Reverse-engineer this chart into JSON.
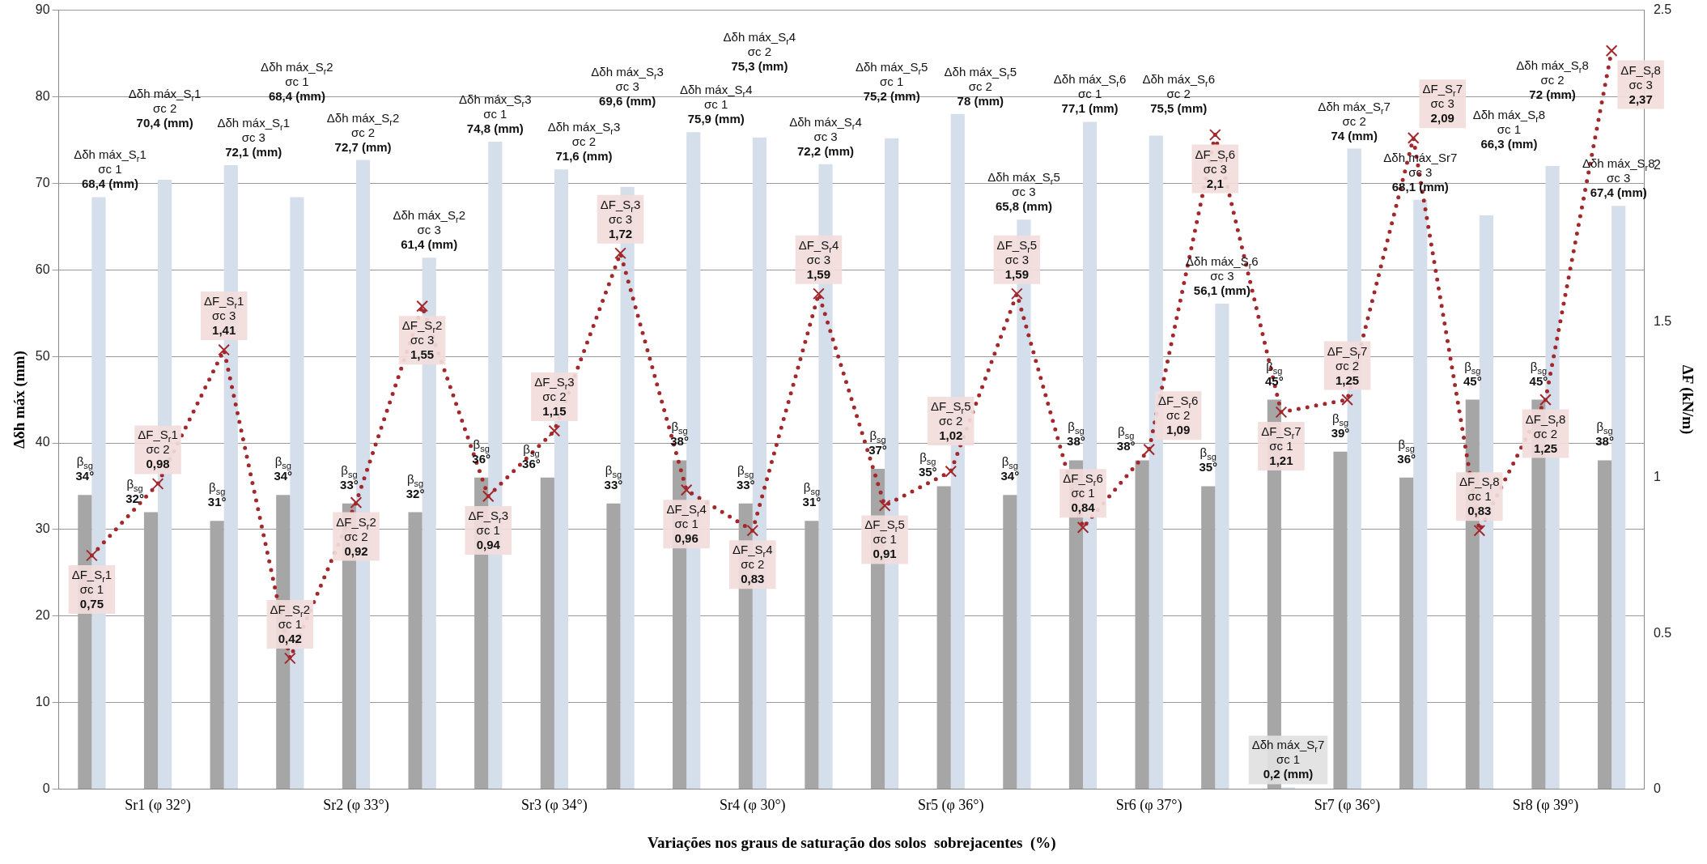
{
  "chart_data": {
    "type": "bar",
    "xlabel": "Variações nos graus de saturação dos solos  sobrejacentes  (%)",
    "ylabel": "Δδh máx (mm)",
    "y2label": "ΔF (kN/m)",
    "categories": [
      null,
      "Sr1 (φ 32°)",
      null,
      null,
      "Sr2 (φ 33°)",
      null,
      null,
      "Sr3 (φ 34°)",
      null,
      null,
      "Sr4 (φ 30°)",
      null,
      null,
      "Sr5 (φ 36°)",
      null,
      null,
      "Sr6 (φ 37°)",
      null,
      null,
      "Sr7 (φ 36°)",
      null,
      null,
      "Sr8 (φ 39°)",
      null
    ],
    "ylim": [
      0,
      90
    ],
    "yticks": [
      0,
      10,
      20,
      30,
      40,
      50,
      60,
      70,
      80,
      90
    ],
    "y2lim": [
      0,
      2.5
    ],
    "y2ticks": [
      0,
      0.5,
      1,
      1.5,
      2,
      2.5
    ],
    "grid": "y",
    "legend": false,
    "series": [
      {
        "color": "#a6a6a6",
        "values": [
          34,
          32,
          31,
          34,
          33,
          32,
          36,
          36,
          33,
          38,
          33,
          31,
          37,
          35,
          34,
          38,
          38,
          35,
          45,
          39,
          36,
          45,
          45,
          38
        ],
        "value_labels": [
          "β$_{sg}$\n34°",
          "β$_{sg}$\n32°",
          "β$_{sg}$\n31°",
          "β$_{sg}$\n34°",
          "β$_{sg}$\n33°",
          "β$_{sg}$\n32°",
          "β$_{sg}$\n36°",
          "β$_{sg}$\n36°",
          "β$_{sg}$\n33°",
          "β$_{sg}$\n38°",
          "β$_{sg}$\n33°",
          "β$_{sg}$\n31°",
          "β$_{sg}$\n37°",
          "β$_{sg}$\n35°",
          "β$_{sg}$\n34°",
          "β$_{sg}$\n38°",
          "β$_{sg}$\n38°",
          "β$_{sg}$\n35°",
          "β$_{sg}$\n45°",
          "β$_{sg}$\n39°",
          "β$_{sg}$\n36°",
          "β$_{sg}$\n45°",
          "β$_{sg}$\n45°",
          "β$_{sg}$\n38°"
        ]
      },
      {
        "type": "bar",
        "color": "#d5deeb",
        "values": [
          68.4,
          70.4,
          72.1,
          68.4,
          72.7,
          61.4,
          74.8,
          71.6,
          69.6,
          75.9,
          75.3,
          72.2,
          75.2,
          78,
          65.8,
          77.1,
          75.5,
          56.1,
          0.2,
          74,
          68.1,
          66.3,
          72,
          67.4
        ],
        "value_labels": [
          "Δδh máx_S$_{r}$1\nσc 1\n68,4 (mm)",
          "Δδh máx_S$_{r}$1\nσc 2\n70,4 (mm)",
          "Δδh máx_S$_{r}$1\nσc 3\n72,1 (mm)",
          "Δδh máx_S$_{r}$2\nσc 1\n68,4 (mm)",
          "Δδh máx_S$_{r}$2\nσc 2\n72,7 (mm)",
          "Δδh máx_S$_{r}$2\nσc 3\n61,4 (mm)",
          "Δδh máx_S$_{r}$3\nσc 1\n74,8 (mm)",
          "Δδh máx_S$_{r}$3\nσc 2\n71,6 (mm)",
          "Δδh máx_S$_{r}$3\nσc 3\n69,6 (mm)",
          "Δδh máx_S$_{r}$4\nσc 1\n75,9 (mm)",
          "Δδh máx_S$_{r}$4\nσc 2\n75,3 (mm)",
          "Δδh máx_S$_{r}$4\nσc 3\n72,2 (mm)",
          "Δδh máx_S$_{r}$5\nσc 1\n75,2 (mm)",
          "Δδh máx_S$_{r}$5\nσc 2\n78 (mm)",
          "Δδh máx_S$_{r}$5\nσc 3\n65,8 (mm)",
          "Δδh máx_S$_{r}$6\nσc 1\n77,1 (mm)",
          "Δδh máx_S$_{r}$6\nσc 2\n75,5 (mm)",
          "Δδh máx_S$_{r}$6\nσc 3\n56,1 (mm)",
          "Δδh máx_S$_{r}$7\nσc 1\n0,2 (mm)",
          "Δδh máx_S$_{r}$7\nσc 2\n74 (mm)",
          "Δδh máx_Sr7\nσc 3\n68,1 (mm)",
          "Δδh máx_S$_{r}$8\nσc 1\n66,3 (mm)",
          "Δδh máx_S$_{r}$8\nσc 2\n72 (mm)",
          "Δδh máx_S$_{r}$8\nσc 3\n67,4 (mm)"
        ]
      },
      {
        "type": "line",
        "axis": "y2",
        "color": "#a3282b",
        "marker": "cross",
        "line_style": "dotted",
        "values": [
          0.75,
          0.98,
          1.41,
          0.42,
          0.92,
          1.55,
          0.94,
          1.15,
          1.72,
          0.96,
          0.83,
          1.59,
          0.91,
          1.02,
          1.59,
          0.84,
          1.09,
          2.1,
          1.21,
          1.25,
          2.09,
          0.83,
          1.25,
          2.37
        ],
        "value_labels": [
          "ΔF_S$_{r}$1\nσc 1\n0,75",
          "ΔF_S$_{r}$1\nσc 2\n0,98",
          "ΔF_S$_{r}$1\nσc 3\n1,41",
          "ΔF_S$_{r}$2\nσc 1\n0,42",
          "ΔF_S$_{r}$2\nσc 2\n0,92",
          "ΔF_S$_{r}$2\nσc 3\n1,55",
          "ΔF_S$_{r}$3\nσc 1\n0,94",
          "ΔF_S$_{r}$3\nσc 2\n1,15",
          "ΔF_S$_{r}$3\nσc 3\n1,72",
          "ΔF_S$_{r}$4\nσc 1\n0,96",
          "ΔF_S$_{r}$4\nσc 2\n0,83",
          "ΔF_S$_{r}$4\nσc 3\n1,59",
          "ΔF_S$_{r}$5\nσc 1\n0,91",
          "ΔF_S$_{r}$5\nσc 2\n1,02",
          "ΔF_S$_{r}$5\nσc 3\n1,59",
          "ΔF_S$_{r}$6\nσc 1\n0,84",
          "ΔF_S$_{r}$6\nσc 2\n1,09",
          "ΔF_S$_{r}$6\nσc 3\n2,1",
          "ΔF_S$_{r}$7\nσc 1\n1,21",
          "ΔF_S$_{r}$7\nσc 2\n1,25",
          "ΔF_S$_{r}$7\nσc 3\n2,09",
          "ΔF_S$_{r}$8\nσc 1\n0,83",
          "ΔF_S$_{r}$8\nσc 2\n1,25",
          "ΔF_S$_{r}$8\nσc 3\n2,37"
        ]
      }
    ]
  }
}
